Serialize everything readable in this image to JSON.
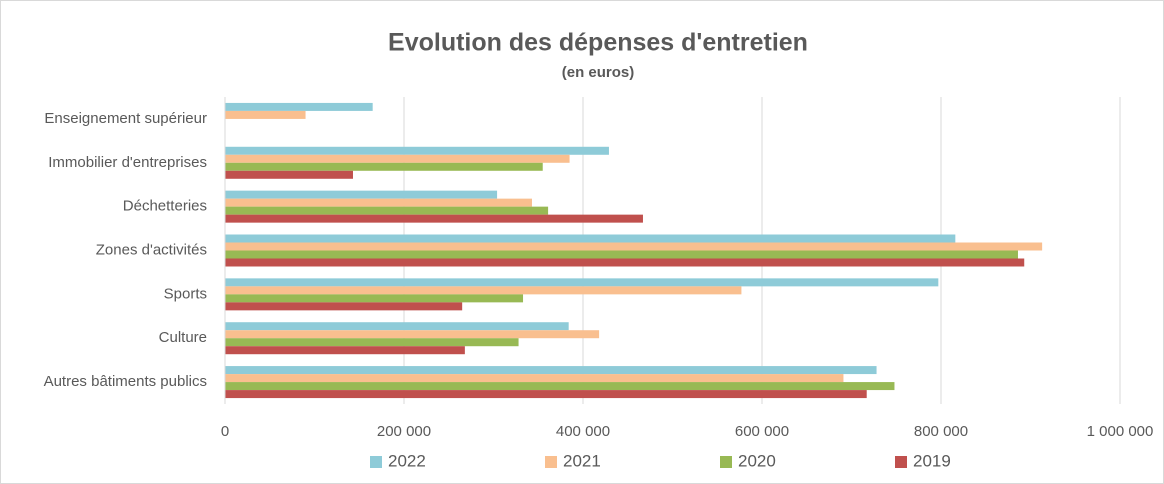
{
  "chart_data": {
    "type": "hbar",
    "title": "Evolution des dépenses d'entretien",
    "subtitle": "(en euros)",
    "categories": [
      "Enseignement supérieur",
      "Immobilier d'entreprises",
      "Déchetteries",
      "Zones d'activités",
      "Sports",
      "Culture",
      "Autres bâtiments publics"
    ],
    "series": [
      {
        "name": "2022",
        "color": "#8ecbd8",
        "values": [
          165000,
          429000,
          304000,
          816000,
          797000,
          384000,
          728000
        ]
      },
      {
        "name": "2021",
        "color": "#f9bf8f",
        "values": [
          90000,
          385000,
          343000,
          913000,
          577000,
          418000,
          691000
        ]
      },
      {
        "name": "2020",
        "color": "#98b954",
        "values": [
          null,
          355000,
          361000,
          886000,
          333000,
          328000,
          748000
        ]
      },
      {
        "name": "2019",
        "color": "#c0504d",
        "values": [
          null,
          143000,
          467000,
          893000,
          265000,
          268000,
          717000
        ]
      }
    ],
    "xlim": [
      0,
      1000000
    ],
    "xticks": [
      0,
      {
        "value": 200000,
        "label": "200 000"
      },
      {
        "value": 400000,
        "label": "400 000"
      },
      {
        "value": 600000,
        "label": "600 000"
      },
      {
        "value": 800000,
        "label": "800 000"
      },
      {
        "value": 1000000,
        "label": "1 000 000"
      }
    ],
    "grid": true,
    "legend": "bottom"
  }
}
